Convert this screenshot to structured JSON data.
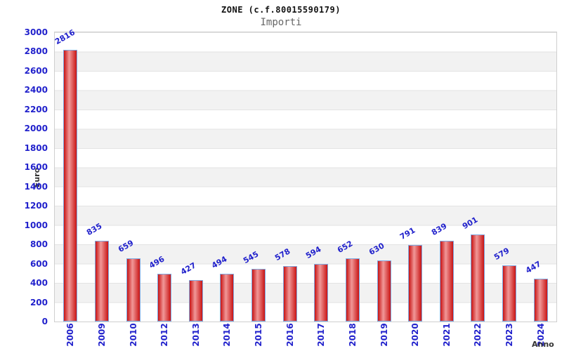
{
  "header": {
    "title": "ZONE (c.f.80015590179)",
    "subtitle": "Importi"
  },
  "chart_data": {
    "type": "bar",
    "title": "ZONE (c.f.80015590179)",
    "subtitle": "Importi",
    "xlabel": "Anno",
    "ylabel": "Euro",
    "categories": [
      "2006",
      "2009",
      "2010",
      "2012",
      "2013",
      "2014",
      "2015",
      "2016",
      "2017",
      "2018",
      "2019",
      "2020",
      "2021",
      "2022",
      "2023",
      "2024"
    ],
    "values": [
      2816,
      835,
      659,
      496,
      427,
      494,
      545,
      578,
      594,
      652,
      630,
      791,
      839,
      901,
      579,
      447
    ],
    "ylim": [
      0,
      3000
    ],
    "ytick_step": 200,
    "yticks": [
      0,
      200,
      400,
      600,
      800,
      1000,
      1200,
      1400,
      1600,
      1800,
      2000,
      2200,
      2400,
      2600,
      2800,
      3000
    ],
    "grid": "horizontal-bands-alternating",
    "legend": "none",
    "value_labels": "above-bars-rotated",
    "colors": {
      "tick_text": "#2222cc",
      "bar_fill_dark": "#c81414",
      "bar_fill_light": "#f19898",
      "bar_border": "#7fa8e0",
      "band_gray": "#f2f2f2",
      "gridline": "#e3e3e3",
      "axis_title_text": "#333333",
      "subtitle_text": "#666666"
    }
  }
}
